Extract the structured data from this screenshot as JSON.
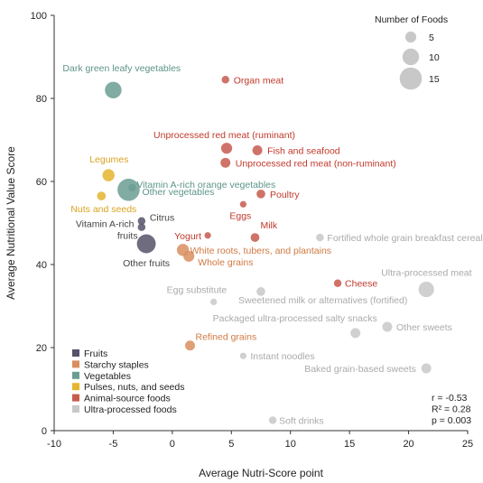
{
  "chart_data": {
    "type": "scatter",
    "xlabel": "Average Nutri-Score point",
    "ylabel": "Average Nutritional Value Score",
    "xlim": [
      -10,
      25
    ],
    "ylim": [
      0,
      100
    ],
    "xticks": [
      "-10",
      "-5",
      "0",
      "5",
      "10",
      "15",
      "20",
      "25"
    ],
    "yticks": [
      "0",
      "20",
      "40",
      "60",
      "80",
      "100"
    ],
    "grid": false,
    "colors": {
      "Fruits": "#56526a",
      "Starchy staples": "#d98e5f",
      "Vegetables": "#6b9e93",
      "Pulses, nuts, and seeds": "#e5b52d",
      "Animal-source foods": "#c75b4d",
      "Ultra-processed foods": "#c8c8c8"
    },
    "label_colors": {
      "Fruits": "#444444",
      "Starchy staples": "#d07a42",
      "Vegetables": "#5d9488",
      "Pulses, nuts, and seeds": "#d9a320",
      "Animal-source foods": "#c0392b",
      "Ultra-processed foods": "#aaaaaa"
    },
    "points": [
      {
        "label": "Dark green leafy vegetables",
        "group": "Vegetables",
        "x": -5.0,
        "y": 82,
        "n": 10
      },
      {
        "label": "Organ meat",
        "group": "Animal-source foods",
        "x": 4.5,
        "y": 84.5,
        "n": 2
      },
      {
        "label": "Unprocessed red meat (ruminant)",
        "group": "Animal-source foods",
        "x": 4.6,
        "y": 68,
        "n": 5
      },
      {
        "label": "Fish and seafood",
        "group": "Animal-source foods",
        "x": 7.2,
        "y": 67.5,
        "n": 4
      },
      {
        "label": "Unprocessed red meat (non-ruminant)",
        "group": "Animal-source foods",
        "x": 4.5,
        "y": 64.5,
        "n": 4
      },
      {
        "label": "Legumes",
        "group": "Pulses, nuts, and seeds",
        "x": -5.4,
        "y": 61.5,
        "n": 6
      },
      {
        "label": "Vitamin A-rich orange vegetables",
        "group": "Vegetables",
        "x": -3.4,
        "y": 58.5,
        "n": 2
      },
      {
        "label": "Other vegetables",
        "group": "Vegetables",
        "x": -3.7,
        "y": 58,
        "n": 15
      },
      {
        "label": "Poultry",
        "group": "Animal-source foods",
        "x": 7.5,
        "y": 57,
        "n": 3
      },
      {
        "label": "Nuts and seeds",
        "group": "Pulses, nuts, and seeds",
        "x": -6.0,
        "y": 56.5,
        "n": 3
      },
      {
        "label": "Eggs",
        "group": "Animal-source foods",
        "x": 6.0,
        "y": 54.5,
        "n": 1
      },
      {
        "label": "Citrus",
        "group": "Fruits",
        "x": -2.6,
        "y": 50.5,
        "n": 2
      },
      {
        "label": "Vitamin A-rich fruits",
        "group": "Fruits",
        "x": -2.6,
        "y": 49,
        "n": 2
      },
      {
        "label": "Other fruits",
        "group": "Fruits",
        "x": -2.2,
        "y": 45,
        "n": 12
      },
      {
        "label": "Yogurt",
        "group": "Animal-source foods",
        "x": 3.0,
        "y": 47,
        "n": 1
      },
      {
        "label": "Milk",
        "group": "Animal-source foods",
        "x": 7.0,
        "y": 46.5,
        "n": 3
      },
      {
        "label": "White roots, tubers, and plantains",
        "group": "Starchy staples",
        "x": 0.9,
        "y": 43.5,
        "n": 6
      },
      {
        "label": "Whole grains",
        "group": "Starchy staples",
        "x": 1.4,
        "y": 42,
        "n": 5
      },
      {
        "label": "Fortified whole grain breakfast cereals",
        "group": "Ultra-processed foods",
        "x": 12.5,
        "y": 46.5,
        "n": 2
      },
      {
        "label": "Cheese",
        "group": "Animal-source foods",
        "x": 14.0,
        "y": 35.5,
        "n": 2
      },
      {
        "label": "Ultra-processed meat",
        "group": "Ultra-processed foods",
        "x": 21.5,
        "y": 34,
        "n": 9
      },
      {
        "label": "Egg substitute",
        "group": "Ultra-processed foods",
        "x": 3.5,
        "y": 31,
        "n": 1
      },
      {
        "label": "Sweetened milk or alternatives (fortified)",
        "group": "Ultra-processed foods",
        "x": 7.5,
        "y": 33.5,
        "n": 3
      },
      {
        "label": "Packaged ultra-processed salty snacks",
        "group": "Ultra-processed foods",
        "x": 15.5,
        "y": 23.5,
        "n": 4
      },
      {
        "label": "Other sweets",
        "group": "Ultra-processed foods",
        "x": 18.2,
        "y": 25,
        "n": 4
      },
      {
        "label": "Refined grains",
        "group": "Starchy staples",
        "x": 1.5,
        "y": 20.5,
        "n": 4
      },
      {
        "label": "Instant noodles",
        "group": "Ultra-processed foods",
        "x": 6.0,
        "y": 18,
        "n": 1
      },
      {
        "label": "Baked grain-based sweets",
        "group": "Ultra-processed foods",
        "x": 21.5,
        "y": 15,
        "n": 4
      },
      {
        "label": "Soft drinks",
        "group": "Ultra-processed foods",
        "x": 8.5,
        "y": 2.5,
        "n": 2
      }
    ],
    "size_legend": {
      "title": "Number of Foods",
      "values": [
        5,
        10,
        15
      ],
      "labels": [
        "5",
        "10",
        "15"
      ]
    },
    "legend": {
      "placement": "bottom-left",
      "entries": [
        "Fruits",
        "Starchy staples",
        "Vegetables",
        "Pulses, nuts, and seeds",
        "Animal-source foods",
        "Ultra-processed foods"
      ]
    },
    "stats": [
      "r = -0.53",
      "R² = 0.28",
      "p = 0.003"
    ]
  }
}
